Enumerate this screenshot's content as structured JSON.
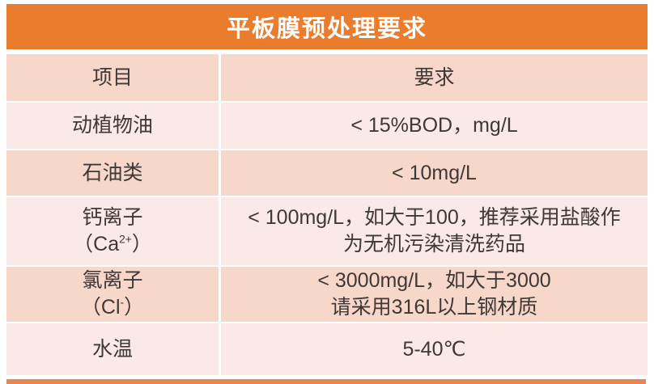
{
  "title": {
    "text": "平板膜预处理要求"
  },
  "colors": {
    "accent_orange": "#E97C2D",
    "bottom_bar_orange": "#EA8455",
    "row_light": "#FAE9E6",
    "row_medium": "#F8D7CB",
    "text_dark": "#3E3837",
    "title_text": "#FFFFFF"
  },
  "table": {
    "header": {
      "item": "项目",
      "requirement": "要求"
    },
    "rows": [
      {
        "shade": "light",
        "item": [
          {
            "text": "动植物油"
          }
        ],
        "requirement": [
          {
            "text": "< 15%BOD，mg/L"
          }
        ]
      },
      {
        "shade": "medium",
        "item": [
          {
            "text": "石油类"
          }
        ],
        "requirement": [
          {
            "text": "< 10mg/L"
          }
        ]
      },
      {
        "shade": "light",
        "item": [
          {
            "text": "钙离子"
          },
          {
            "br": true
          },
          {
            "text": "（Ca"
          },
          {
            "text": "2+",
            "sup": true
          },
          {
            "text": "）"
          }
        ],
        "requirement": [
          {
            "text": "< 100mg/L，如大于100，推荐采用盐酸作"
          },
          {
            "br": true
          },
          {
            "text": "为无机污染清洗药品"
          }
        ]
      },
      {
        "shade": "medium",
        "item": [
          {
            "text": "氯离子"
          },
          {
            "br": true
          },
          {
            "text": "（Cl"
          },
          {
            "text": "-",
            "sup": true
          },
          {
            "text": "）"
          }
        ],
        "requirement": [
          {
            "text": "< 3000mg/L，如大于3000"
          },
          {
            "br": true
          },
          {
            "text": "请采用316L以上钢材质"
          }
        ]
      },
      {
        "shade": "light",
        "item": [
          {
            "text": "水温"
          }
        ],
        "requirement": [
          {
            "text": "5-40℃"
          }
        ]
      }
    ]
  },
  "chart_data": {
    "type": "table",
    "title": "平板膜预处理要求",
    "columns": [
      "项目",
      "要求"
    ],
    "rows": [
      [
        "动植物油",
        "< 15%BOD，mg/L"
      ],
      [
        "石油类",
        "< 10mg/L"
      ],
      [
        "钙离子（Ca2+）",
        "< 100mg/L，如大于100，推荐采用盐酸作为无机污染清洗药品"
      ],
      [
        "氯离子（Cl-）",
        "< 3000mg/L，如大于3000 请采用316L以上钢材质"
      ],
      [
        "水温",
        "5-40℃"
      ]
    ],
    "layout_hints": {
      "title_position": "top-banner",
      "row_striping": [
        "medium",
        "light",
        "medium",
        "light",
        "medium",
        "light"
      ],
      "column_width_ratio": [
        0.33,
        0.67
      ]
    }
  }
}
